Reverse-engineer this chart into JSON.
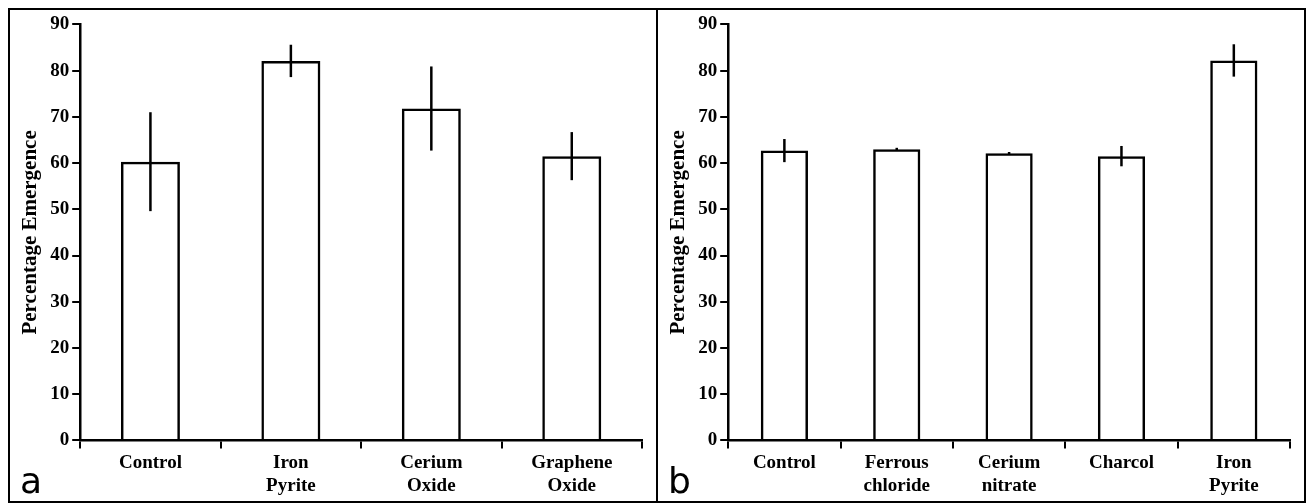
{
  "chart_data": [
    {
      "type": "bar",
      "categories": [
        "Control",
        "Iron Pyrite",
        "Cerium Oxide",
        "Graphene Oxide"
      ],
      "ylabel": "Percentage Emergence",
      "values": [
        60.3,
        82.1,
        71.8,
        61.5
      ],
      "errors": [
        10.7,
        3.5,
        9.1,
        5.2
      ],
      "color": "#000000",
      "ylim": [
        0,
        90
      ],
      "yticks": [
        0,
        10,
        20,
        30,
        40,
        50,
        60,
        70,
        80,
        90
      ],
      "grid": false,
      "legend": false,
      "annotations": [
        "a"
      ]
    },
    {
      "type": "bar",
      "categories": [
        "Control",
        "Ferrous chloride",
        "Cerium nitrate",
        "Charcol",
        "Iron Pyrite"
      ],
      "ylabel": "Percentage Emergence",
      "values": [
        62.7,
        63.0,
        62.1,
        61.5,
        82.2
      ],
      "errors": [
        2.5,
        0.3,
        0.3,
        2.2,
        3.5
      ],
      "color": "#000000",
      "ylim": [
        0,
        90
      ],
      "yticks": [
        0,
        10,
        20,
        30,
        40,
        50,
        60,
        70,
        80,
        90
      ],
      "grid": false,
      "legend": false,
      "annotations": [
        "b"
      ]
    }
  ]
}
